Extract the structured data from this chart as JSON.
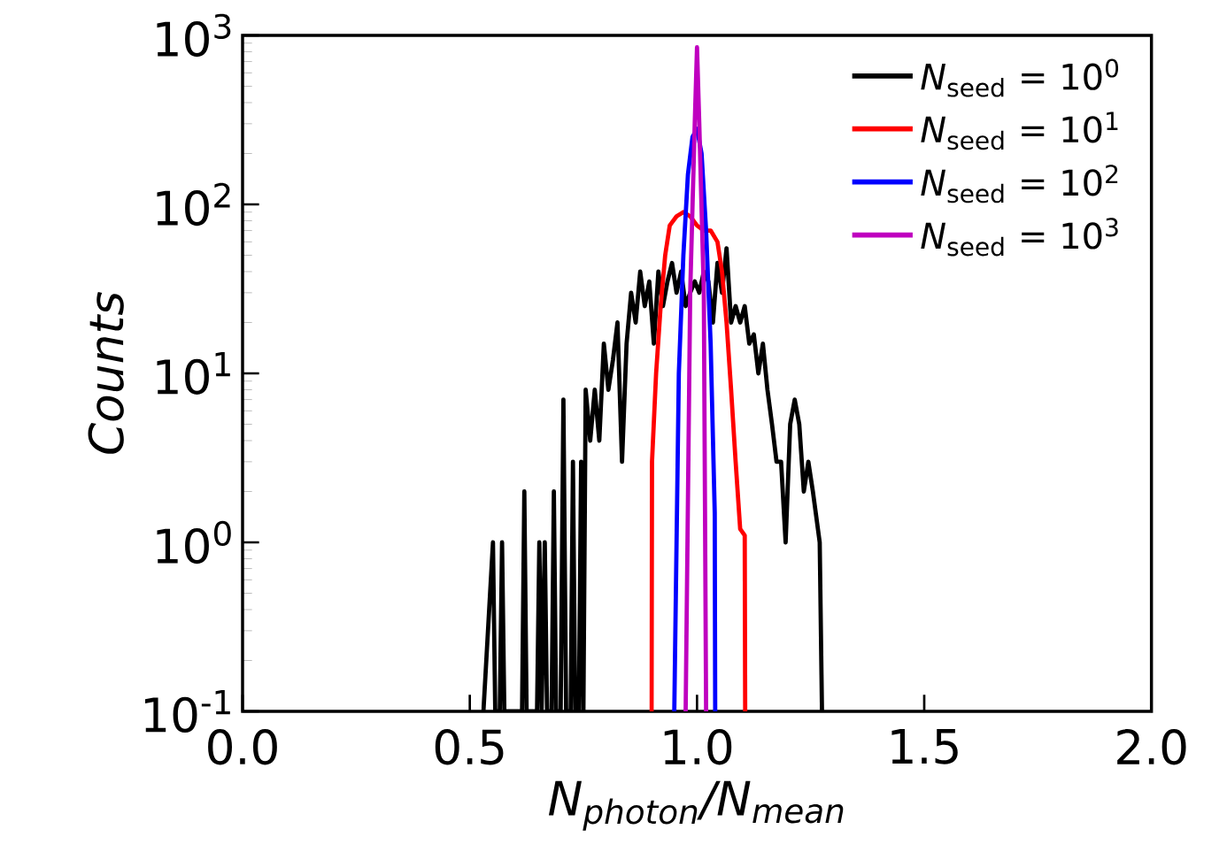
{
  "chart_data": {
    "type": "line",
    "log": "y",
    "legend": "top right",
    "xlabel": "N$_{photon}$/N$_{mean}$",
    "ylabel": "Counts",
    "xlim": [
      0,
      2
    ],
    "ylim": [
      0.1,
      1000
    ],
    "xticks": [
      {
        "value": 0,
        "label": "0.0"
      },
      {
        "value": 0.5,
        "label": "0.5"
      },
      {
        "value": 1,
        "label": "1.0"
      },
      {
        "value": 1.5,
        "label": "1.5"
      },
      {
        "value": 2,
        "label": "2.0"
      }
    ],
    "yticks": [
      {
        "value": 0.1,
        "label": "10$^{-1}$"
      },
      {
        "value": 1,
        "label": "10$^{0}$"
      },
      {
        "value": 10,
        "label": "10$^{1}$"
      },
      {
        "value": 100,
        "label": "10$^{2}$"
      },
      {
        "value": 1000,
        "label": "10$^{3}$"
      }
    ],
    "series": [
      {
        "name": "*N*$_{seed}$ = 10$^{0}$",
        "color": "#000000",
        "x": [
          0.53,
          0.551,
          0.556,
          0.566,
          0.571,
          0.576,
          0.615,
          0.62,
          0.625,
          0.648,
          0.653,
          0.658,
          0.665,
          0.67,
          0.68,
          0.685,
          0.69,
          0.7,
          0.706,
          0.712,
          0.722,
          0.727,
          0.732,
          0.74,
          0.745,
          0.75,
          0.755,
          0.765,
          0.775,
          0.785,
          0.795,
          0.805,
          0.815,
          0.825,
          0.835,
          0.845,
          0.855,
          0.865,
          0.875,
          0.885,
          0.895,
          0.905,
          0.915,
          0.925,
          0.935,
          0.945,
          0.955,
          0.965,
          0.975,
          0.985,
          0.995,
          1.005,
          1.015,
          1.025,
          1.035,
          1.045,
          1.055,
          1.065,
          1.075,
          1.085,
          1.095,
          1.105,
          1.115,
          1.125,
          1.135,
          1.145,
          1.155,
          1.165,
          1.175,
          1.185,
          1.195,
          1.205,
          1.215,
          1.225,
          1.235,
          1.245,
          1.255,
          1.27,
          1.275
        ],
        "values": [
          0.1,
          1,
          0.1,
          0.1,
          1,
          0.1,
          0.1,
          2,
          0.1,
          0.1,
          1,
          0.1,
          1,
          0.1,
          0.1,
          2,
          0.1,
          0.1,
          7,
          0.1,
          0.1,
          3,
          0.1,
          0.1,
          3,
          0.1,
          8,
          4,
          8,
          4,
          15,
          8,
          12,
          20,
          3,
          15,
          30,
          20,
          40,
          25,
          35,
          15,
          40,
          25,
          35,
          45,
          30,
          40,
          25,
          30,
          35,
          30,
          40,
          35,
          20,
          45,
          30,
          55,
          20,
          25,
          20,
          25,
          15,
          17,
          10,
          15,
          8,
          5,
          3,
          3,
          1,
          5,
          7,
          5,
          2,
          3,
          2,
          1,
          0.1
        ]
      },
      {
        "name": "*N*$_{seed}$ = 10$^{1}$",
        "color": "#ff0000",
        "x": [
          0.9,
          0.901,
          0.91,
          0.92,
          0.93,
          0.94,
          0.955,
          0.97,
          0.985,
          1.0,
          1.015,
          1.03,
          1.045,
          1.055,
          1.065,
          1.075,
          1.085,
          1.095,
          1.105,
          1.106
        ],
        "values": [
          0.1,
          3,
          10,
          25,
          50,
          75,
          85,
          90,
          85,
          75,
          70,
          70,
          60,
          40,
          20,
          8,
          3,
          1.2,
          1.1,
          0.1
        ]
      },
      {
        "name": "*N*$_{seed}$ = 10$^{2}$",
        "color": "#0000ff",
        "x": [
          0.95,
          0.96,
          0.97,
          0.98,
          0.99,
          1.0,
          1.01,
          1.02,
          1.03,
          1.039,
          1.04
        ],
        "values": [
          0.1,
          10,
          50,
          150,
          250,
          280,
          200,
          70,
          15,
          1.5,
          0.1
        ]
      },
      {
        "name": "*N*$_{seed}$ = 10$^{3}$",
        "color": "#bf00bf",
        "x": [
          0.975,
          0.985,
          0.995,
          1.0,
          1.005,
          1.015,
          1.02
        ],
        "values": [
          0.1,
          30,
          300,
          850,
          300,
          30,
          0.1
        ]
      }
    ]
  }
}
